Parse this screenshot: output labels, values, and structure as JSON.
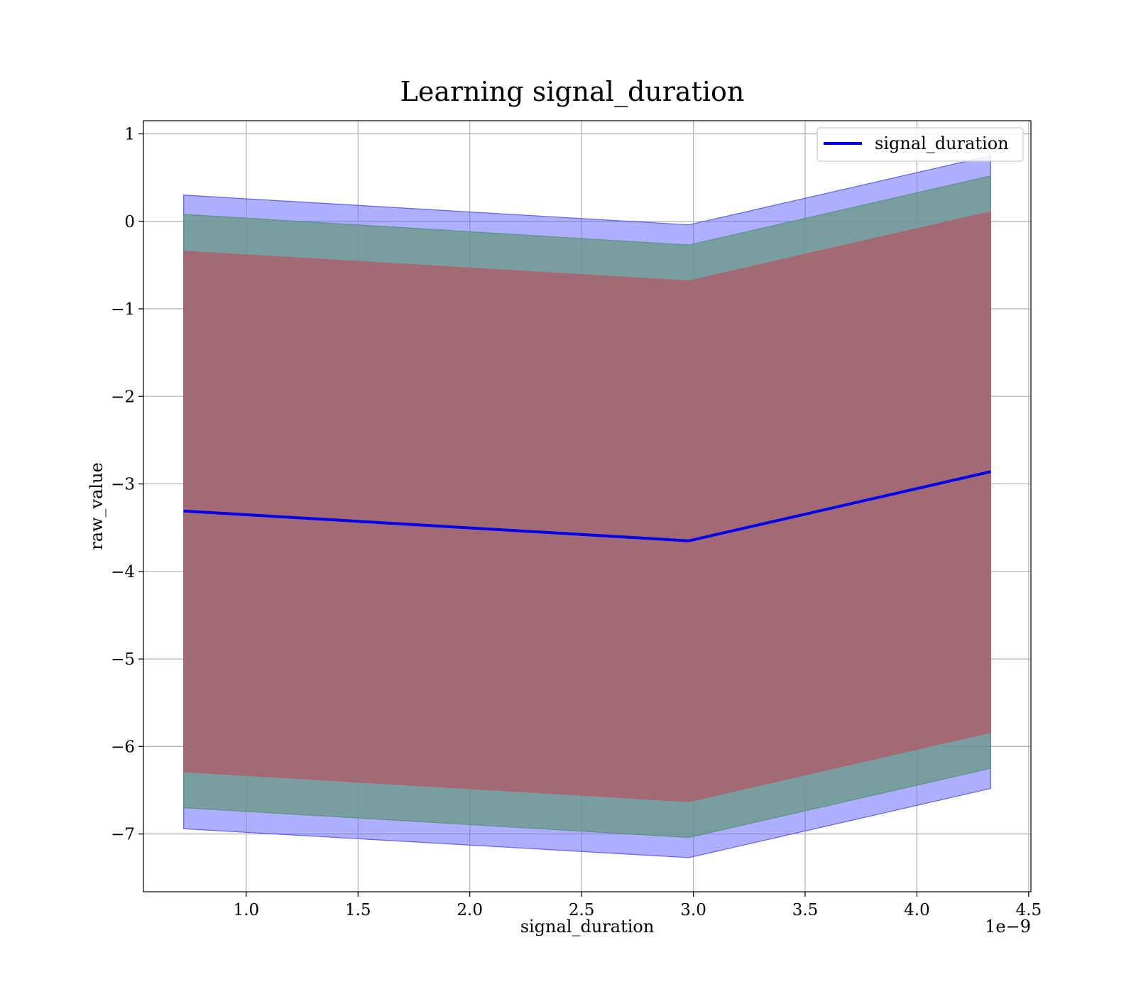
{
  "chart_data": {
    "type": "area",
    "title": "Learning signal_duration",
    "xlabel": "signal_duration",
    "ylabel": "raw_value",
    "x_offset_label": "1e−9",
    "x_multiplier": 1e-09,
    "xlim": [
      0.54,
      4.51
    ],
    "ylim": [
      -7.66,
      1.15
    ],
    "x_ticks": [
      1.0,
      1.5,
      2.0,
      2.5,
      3.0,
      3.5,
      4.0,
      4.5
    ],
    "x_tick_labels": [
      "1.0",
      "1.5",
      "2.0",
      "2.5",
      "3.0",
      "3.5",
      "4.0",
      "4.5"
    ],
    "y_ticks": [
      1,
      0,
      -1,
      -2,
      -3,
      -4,
      -5,
      -6,
      -7
    ],
    "y_tick_labels": [
      "1",
      "0",
      "−1",
      "−2",
      "−3",
      "−4",
      "−5",
      "−6",
      "−7"
    ],
    "grid": true,
    "legend_position": "top-right",
    "x": [
      0.72,
      2.98,
      4.33
    ],
    "series": [
      {
        "name": "signal_duration",
        "role": "line",
        "color": "#0000ee",
        "values": [
          -3.31,
          -3.65,
          -2.86
        ]
      }
    ],
    "bands": [
      {
        "color": "#6666ff",
        "opacity": 0.52,
        "stroke": "#5555ee",
        "upper": [
          0.3,
          -0.04,
          0.75
        ],
        "lower": [
          -6.94,
          -7.27,
          -6.48
        ]
      },
      {
        "color": "#6b9a8a",
        "opacity": 0.82,
        "stroke": "#5a8f80",
        "upper": [
          0.08,
          -0.27,
          0.52
        ],
        "lower": [
          -6.7,
          -7.04,
          -6.25
        ]
      },
      {
        "color": "#a6666f",
        "opacity": 0.92,
        "stroke": "#b06070",
        "upper": [
          -0.34,
          -0.68,
          0.11
        ],
        "lower": [
          -6.29,
          -6.63,
          -5.84
        ]
      }
    ]
  }
}
